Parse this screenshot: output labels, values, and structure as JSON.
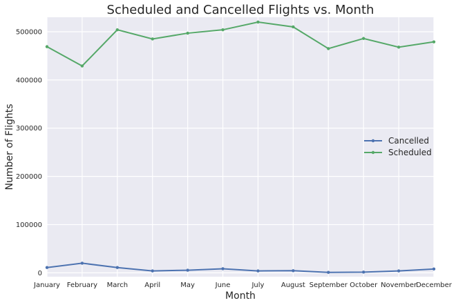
{
  "chart_data": {
    "type": "line",
    "title": "Scheduled and Cancelled Flights vs. Month",
    "xlabel": "Month",
    "ylabel": "Number of Flights",
    "categories": [
      "January",
      "February",
      "March",
      "April",
      "May",
      "June",
      "July",
      "August",
      "September",
      "October",
      "November",
      "December"
    ],
    "ylim": [
      -8000,
      530000
    ],
    "yticks": [
      0,
      100000,
      200000,
      300000,
      400000,
      500000
    ],
    "ytick_labels": [
      "0",
      "100000",
      "200000",
      "300000",
      "400000",
      "500000"
    ],
    "grid": true,
    "legend_position": "center-right",
    "colors": {
      "background": "#eaeaf2",
      "grid": "#ffffff"
    },
    "series": [
      {
        "name": "Cancelled",
        "color": "#4c72b0",
        "values": [
          11000,
          20000,
          11000,
          4000,
          5500,
          8500,
          4000,
          4500,
          1000,
          1500,
          4000,
          8000
        ]
      },
      {
        "name": "Scheduled",
        "color": "#55a868",
        "values": [
          469000,
          429000,
          504000,
          485000,
          497000,
          504000,
          520000,
          510000,
          465000,
          486000,
          468000,
          479000
        ]
      }
    ]
  }
}
